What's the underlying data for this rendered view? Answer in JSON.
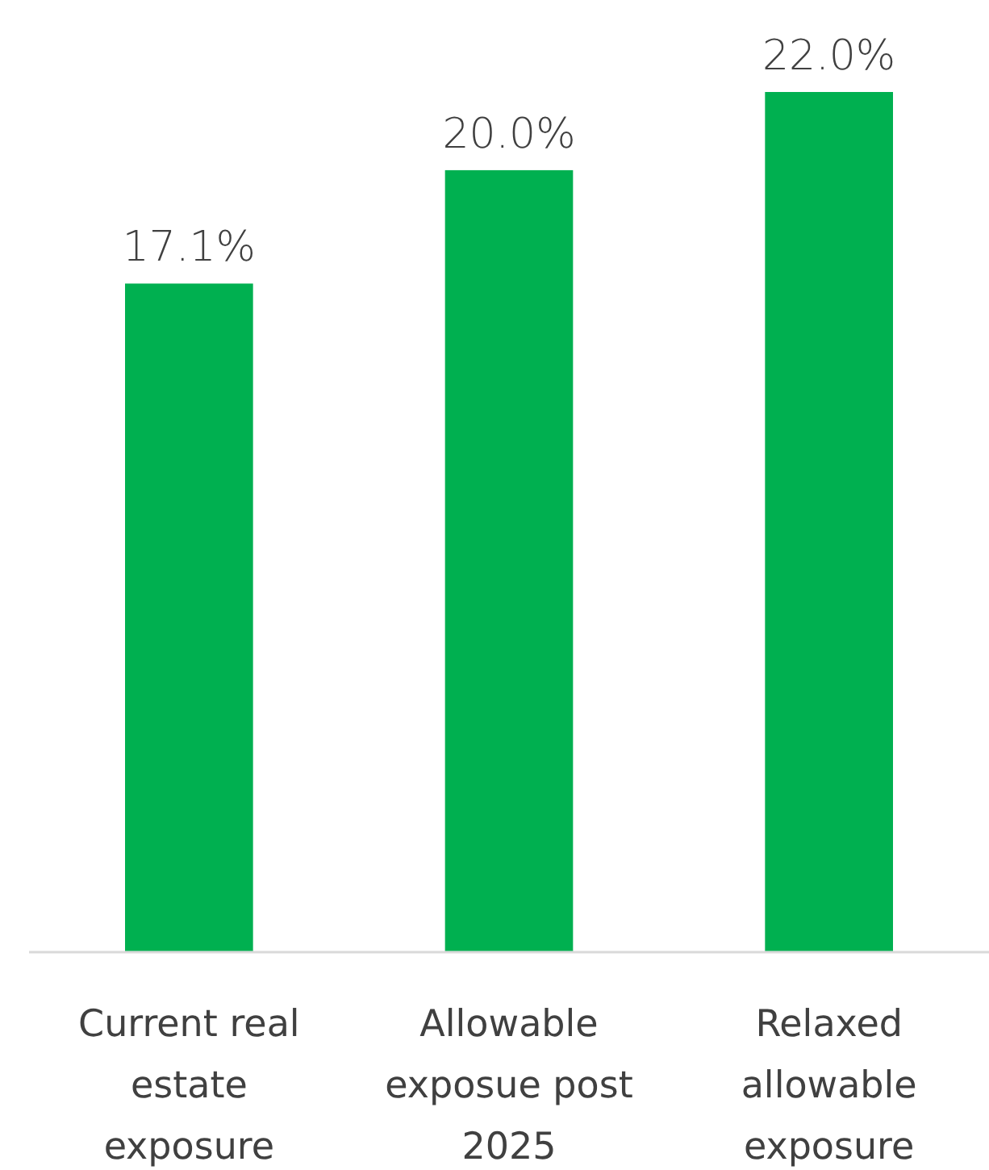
{
  "chart_data": {
    "type": "bar",
    "categories": [
      "Current real estate exposure",
      "Allowable exposue post 2025",
      "Relaxed allowable exposure"
    ],
    "values": [
      17.1,
      20.0,
      22.0
    ],
    "value_labels": [
      "17.1%",
      "20.0%",
      "22.0%"
    ],
    "color": "#00b050"
  }
}
